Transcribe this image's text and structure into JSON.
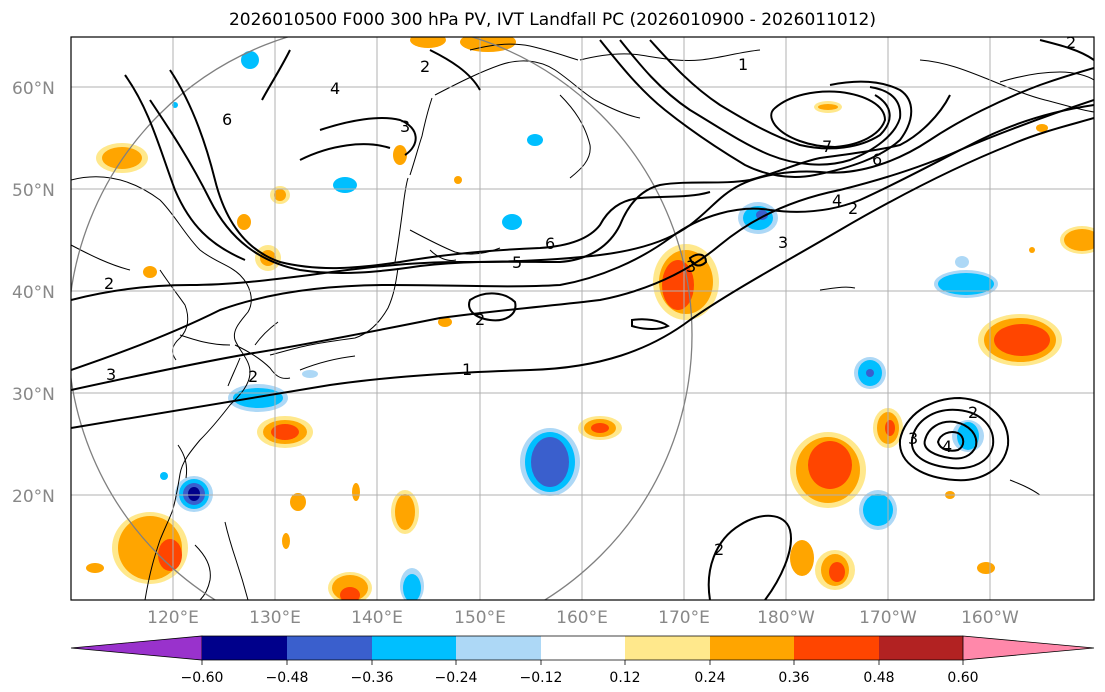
{
  "title": "2026010500 F000 300 hPa PV, IVT Landfall PC (2026010900 - 2026011012)",
  "map": {
    "lon_ticks": [
      "120°E",
      "130°E",
      "140°E",
      "150°E",
      "160°E",
      "170°E",
      "180°W",
      "170°W",
      "160°W"
    ],
    "lat_ticks": [
      "60°N",
      "50°N",
      "40°N",
      "30°N",
      "20°N"
    ],
    "contour_labels": [
      "1",
      "2",
      "3",
      "4",
      "5",
      "6",
      "7"
    ],
    "grid": true
  },
  "colorbar": {
    "ticks": [
      "−0.60",
      "−0.48",
      "−0.36",
      "−0.24",
      "−0.12",
      "0.12",
      "0.24",
      "0.36",
      "0.48",
      "0.60"
    ],
    "colors": [
      "#9932cc",
      "#00008b",
      "#3a5fcd",
      "#00bfff",
      "#add8f6",
      "#ffffff",
      "#ffe88c",
      "#ffa500",
      "#ff4500",
      "#b22222",
      "#ff88aa"
    ]
  }
}
